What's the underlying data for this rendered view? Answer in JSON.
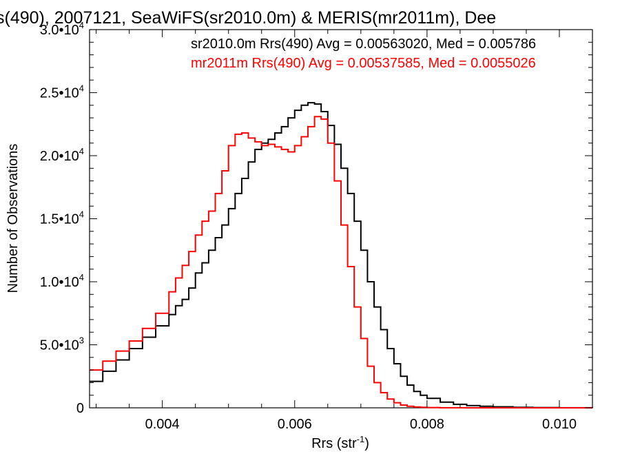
{
  "chart_data": {
    "type": "line",
    "title": "s(490), 2007121, SeaWiFS(sr2010.0m) & MERIS(mr2011m), Dee",
    "xlabel": "Rrs (str",
    "xlabel_sup": "-1",
    "xlabel_end": ")",
    "ylabel": "Number of Observations",
    "xlim": [
      0.0029,
      0.0105
    ],
    "ylim": [
      0,
      30000
    ],
    "x_ticks": [
      {
        "value": 0.004,
        "label": "0.004"
      },
      {
        "value": 0.006,
        "label": "0.006"
      },
      {
        "value": 0.008,
        "label": "0.008"
      },
      {
        "value": 0.01,
        "label": "0.010"
      }
    ],
    "y_ticks": [
      {
        "value": 0,
        "base": "0",
        "exp": ""
      },
      {
        "value": 5000,
        "base": "5.0•10",
        "exp": "3"
      },
      {
        "value": 10000,
        "base": "1.0•10",
        "exp": "4"
      },
      {
        "value": 15000,
        "base": "1.5•10",
        "exp": "4"
      },
      {
        "value": 20000,
        "base": "2.0•10",
        "exp": "4"
      },
      {
        "value": 25000,
        "base": "2.5•10",
        "exp": "4"
      },
      {
        "value": 30000,
        "base": "3.0•10",
        "exp": "4"
      }
    ],
    "grid": false,
    "series": [
      {
        "name": "sr2010.0m Rrs(490) Avg = 0.00563020, Med = 0.005786",
        "color": "#000000",
        "x": [
          0.0029,
          0.0031,
          0.0033,
          0.0035,
          0.0037,
          0.0039,
          0.0041,
          0.0042,
          0.0043,
          0.0044,
          0.0045,
          0.0046,
          0.0047,
          0.0048,
          0.0049,
          0.005,
          0.0051,
          0.0052,
          0.0053,
          0.0054,
          0.0055,
          0.0056,
          0.0057,
          0.0058,
          0.0059,
          0.006,
          0.0061,
          0.0062,
          0.0063,
          0.0064,
          0.0065,
          0.0066,
          0.0067,
          0.0068,
          0.0069,
          0.007,
          0.0071,
          0.0072,
          0.0073,
          0.0074,
          0.0075,
          0.0076,
          0.0077,
          0.0078,
          0.0079,
          0.008,
          0.0082,
          0.0084,
          0.0086,
          0.0088,
          0.009,
          0.0093,
          0.0096,
          0.01,
          0.0105
        ],
        "y": [
          2100,
          2900,
          3800,
          4700,
          5600,
          6500,
          7400,
          8100,
          8600,
          9500,
          10700,
          11500,
          12500,
          13500,
          14500,
          15800,
          17000,
          18200,
          19500,
          20500,
          21000,
          21300,
          21800,
          22300,
          23000,
          23600,
          24000,
          24200,
          24100,
          23500,
          22400,
          20900,
          19000,
          17000,
          14800,
          12500,
          10000,
          8000,
          6200,
          4700,
          3500,
          2500,
          1800,
          1300,
          1000,
          750,
          450,
          280,
          180,
          120,
          80,
          40,
          20,
          8,
          0
        ]
      },
      {
        "name": "mr2011m Rrs(490) Avg = 0.00537585, Med = 0.0055026",
        "color": "#ff0000",
        "x": [
          0.0029,
          0.0031,
          0.0033,
          0.0035,
          0.0037,
          0.0039,
          0.0041,
          0.0042,
          0.0043,
          0.0044,
          0.0045,
          0.0046,
          0.0047,
          0.0048,
          0.0049,
          0.005,
          0.0051,
          0.0052,
          0.0053,
          0.0054,
          0.0055,
          0.0056,
          0.0057,
          0.0058,
          0.0059,
          0.006,
          0.0061,
          0.0062,
          0.0063,
          0.0064,
          0.0065,
          0.0066,
          0.0067,
          0.0068,
          0.0069,
          0.007,
          0.0071,
          0.0072,
          0.0073,
          0.0074,
          0.0075,
          0.0076,
          0.0077,
          0.0078,
          0.0079,
          0.008,
          0.0082,
          0.0084,
          0.0086,
          0.009,
          0.0095,
          0.01,
          0.0105
        ],
        "y": [
          3000,
          3700,
          4500,
          5300,
          6300,
          7500,
          9200,
          10300,
          11300,
          12400,
          13700,
          14800,
          15600,
          17000,
          18800,
          20800,
          21700,
          21800,
          21400,
          21100,
          20800,
          20900,
          20700,
          20500,
          20300,
          20800,
          21500,
          22300,
          23100,
          22900,
          21000,
          18000,
          14500,
          11200,
          8000,
          5500,
          3300,
          2000,
          1200,
          700,
          400,
          220,
          120,
          70,
          40,
          20,
          10,
          5,
          3,
          1,
          0,
          0,
          0
        ]
      }
    ]
  }
}
